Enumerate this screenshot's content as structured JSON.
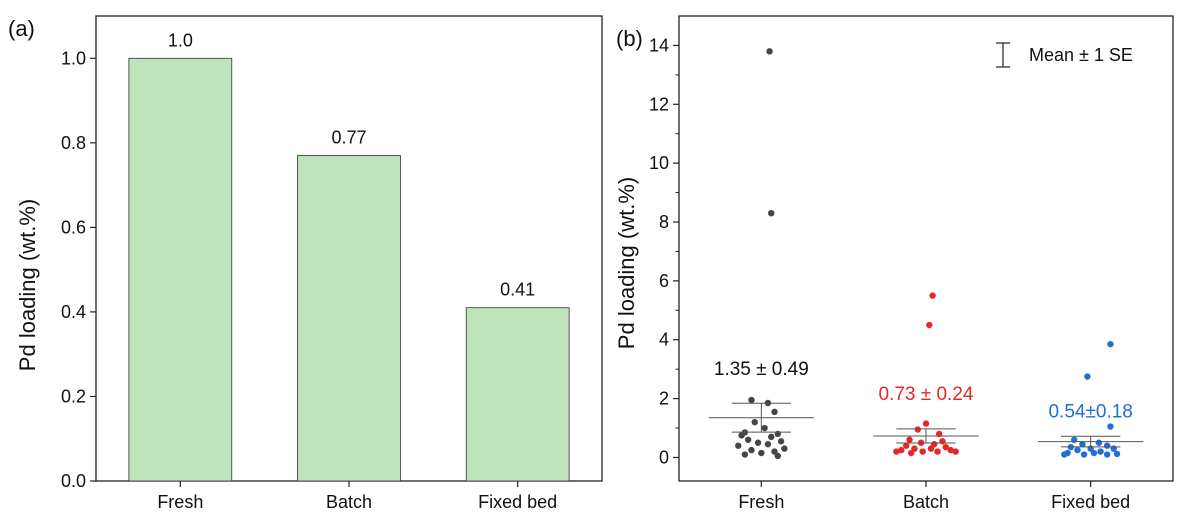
{
  "colors": {
    "bar_fill": "#bfe3bb",
    "bar_stroke": "#333333",
    "fresh": "#454545",
    "batch": "#e8262a",
    "fixed_bed": "#1f6fd6",
    "mean_line": "#555555"
  },
  "chart_data": [
    {
      "type": "bar",
      "panel_label": "(a)",
      "categories": [
        "Fresh",
        "Batch",
        "Fixed bed"
      ],
      "values": [
        1.0,
        0.77,
        0.41
      ],
      "data_labels": [
        "1.0",
        "0.77",
        "0.41"
      ],
      "xlabel": "",
      "ylabel": "Pd loading (wt.%)",
      "ylim": [
        0,
        1.1
      ],
      "yticks": [
        "0.0",
        "0.2",
        "0.4",
        "0.6",
        "0.8",
        "1.0"
      ],
      "grid": false
    },
    {
      "type": "scatter",
      "panel_label": "(b)",
      "categories": [
        "Fresh",
        "Batch",
        "Fixed bed"
      ],
      "xlabel": "",
      "ylabel": "Pd loading (wt.%)",
      "ylim": [
        -0.8,
        15
      ],
      "yticks": [
        "0",
        "2",
        "4",
        "6",
        "8",
        "10",
        "12",
        "14"
      ],
      "grid": false,
      "legend": {
        "label": "Mean ± 1 SE",
        "position": "top-right"
      },
      "series": [
        {
          "category": "Fresh",
          "mean": 1.35,
          "se": 0.49,
          "annotation": "1.35 ± 0.49",
          "points": [
            {
              "j": 0.05,
              "v": 13.8
            },
            {
              "j": 0.06,
              "v": 8.3
            },
            {
              "j": -0.06,
              "v": 1.95
            },
            {
              "j": 0.04,
              "v": 1.85
            },
            {
              "j": 0.08,
              "v": 1.55
            },
            {
              "j": -0.04,
              "v": 1.2
            },
            {
              "j": 0.02,
              "v": 1.0
            },
            {
              "j": -0.1,
              "v": 0.85
            },
            {
              "j": 0.1,
              "v": 0.8
            },
            {
              "j": -0.12,
              "v": 0.75
            },
            {
              "j": 0.06,
              "v": 0.7
            },
            {
              "j": -0.08,
              "v": 0.6
            },
            {
              "j": 0.12,
              "v": 0.55
            },
            {
              "j": -0.02,
              "v": 0.5
            },
            {
              "j": 0.04,
              "v": 0.45
            },
            {
              "j": -0.14,
              "v": 0.4
            },
            {
              "j": 0.14,
              "v": 0.3
            },
            {
              "j": -0.06,
              "v": 0.25
            },
            {
              "j": 0.08,
              "v": 0.2
            },
            {
              "j": -0.1,
              "v": 0.1
            },
            {
              "j": 0.0,
              "v": 0.15
            },
            {
              "j": 0.1,
              "v": 0.05
            }
          ]
        },
        {
          "category": "Batch",
          "mean": 0.73,
          "se": 0.24,
          "annotation": "0.73 ± 0.24",
          "points": [
            {
              "j": 0.04,
              "v": 5.5
            },
            {
              "j": 0.02,
              "v": 4.5
            },
            {
              "j": 0.0,
              "v": 1.15
            },
            {
              "j": -0.05,
              "v": 0.95
            },
            {
              "j": 0.08,
              "v": 0.8
            },
            {
              "j": -0.1,
              "v": 0.6
            },
            {
              "j": 0.1,
              "v": 0.55
            },
            {
              "j": -0.03,
              "v": 0.5
            },
            {
              "j": 0.05,
              "v": 0.45
            },
            {
              "j": -0.12,
              "v": 0.4
            },
            {
              "j": 0.12,
              "v": 0.35
            },
            {
              "j": -0.07,
              "v": 0.3
            },
            {
              "j": 0.03,
              "v": 0.3
            },
            {
              "j": 0.15,
              "v": 0.25
            },
            {
              "j": -0.15,
              "v": 0.25
            },
            {
              "j": -0.02,
              "v": 0.2
            },
            {
              "j": 0.07,
              "v": 0.2
            },
            {
              "j": -0.09,
              "v": 0.15
            },
            {
              "j": 0.18,
              "v": 0.2
            },
            {
              "j": -0.18,
              "v": 0.2
            }
          ]
        },
        {
          "category": "Fixed bed",
          "mean": 0.54,
          "se": 0.18,
          "annotation": "0.54±0.18",
          "points": [
            {
              "j": 0.12,
              "v": 3.85
            },
            {
              "j": -0.02,
              "v": 2.75
            },
            {
              "j": 0.12,
              "v": 1.05
            },
            {
              "j": -0.1,
              "v": 0.6
            },
            {
              "j": 0.05,
              "v": 0.5
            },
            {
              "j": -0.05,
              "v": 0.45
            },
            {
              "j": 0.1,
              "v": 0.4
            },
            {
              "j": -0.12,
              "v": 0.35
            },
            {
              "j": 0.0,
              "v": 0.3
            },
            {
              "j": 0.14,
              "v": 0.3
            },
            {
              "j": -0.08,
              "v": 0.25
            },
            {
              "j": 0.06,
              "v": 0.2
            },
            {
              "j": -0.14,
              "v": 0.15
            },
            {
              "j": 0.02,
              "v": 0.15
            },
            {
              "j": 0.1,
              "v": 0.1
            },
            {
              "j": -0.04,
              "v": 0.1
            },
            {
              "j": 0.16,
              "v": 0.12
            },
            {
              "j": -0.16,
              "v": 0.1
            }
          ]
        }
      ]
    }
  ]
}
